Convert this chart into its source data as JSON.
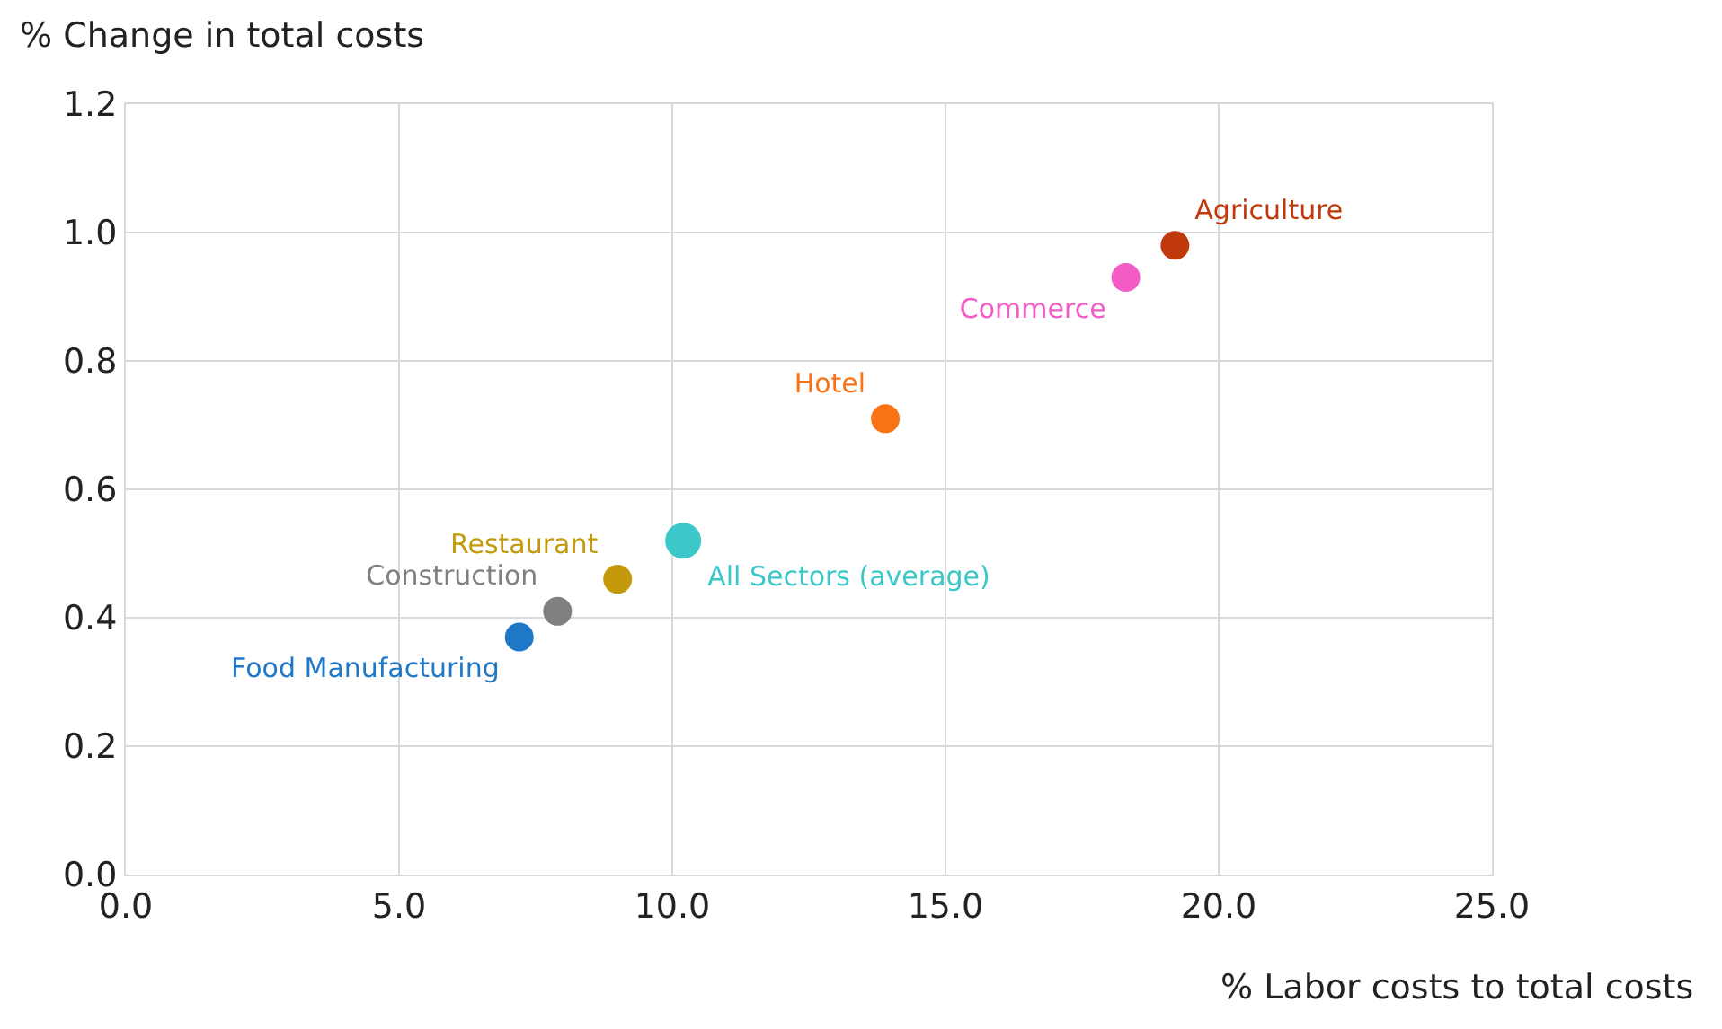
{
  "chart_data": {
    "type": "scatter",
    "xlabel": "% Labor costs to total costs",
    "ylabel": "% Change in total costs",
    "series": [
      {
        "name": "Agriculture",
        "color": "#c0390b",
        "x": [
          19.2
        ],
        "values": [
          0.98
        ]
      },
      {
        "name": "Commerce",
        "color": "#f25cc4",
        "x": [
          18.3
        ],
        "values": [
          0.93
        ]
      },
      {
        "name": "Hotel",
        "color": "#f97316",
        "x": [
          13.9
        ],
        "values": [
          0.71
        ]
      },
      {
        "name": "All Sectors (average)",
        "color": "#3cc8c8",
        "x": [
          10.2
        ],
        "values": [
          0.52
        ]
      },
      {
        "name": "Restaurant",
        "color": "#c49a0a",
        "x": [
          9.0
        ],
        "values": [
          0.46
        ]
      },
      {
        "name": "Construction",
        "color": "#808080",
        "x": [
          7.9
        ],
        "values": [
          0.41
        ]
      },
      {
        "name": "Food Manufacturing",
        "color": "#1f77c8",
        "x": [
          7.2
        ],
        "values": [
          0.37
        ]
      }
    ],
    "xlim": [
      0,
      25
    ],
    "ylim": [
      0,
      1.2
    ],
    "xticks": [
      {
        "value": 0,
        "label": "0.0"
      },
      {
        "value": 5,
        "label": "5.0"
      },
      {
        "value": 10,
        "label": "10.0"
      },
      {
        "value": 15,
        "label": "15.0"
      },
      {
        "value": 20,
        "label": "20.0"
      },
      {
        "value": 25,
        "label": "25.0"
      }
    ],
    "yticks": [
      {
        "value": 0,
        "label": "0.0"
      },
      {
        "value": 0.2,
        "label": "0.2"
      },
      {
        "value": 0.4,
        "label": "0.4"
      },
      {
        "value": 0.6,
        "label": "0.6"
      },
      {
        "value": 0.8,
        "label": "0.8"
      },
      {
        "value": 1.0,
        "label": "1.0"
      },
      {
        "value": 1.2,
        "label": "1.2"
      }
    ],
    "grid": true,
    "legend": false,
    "marker": "circle"
  }
}
